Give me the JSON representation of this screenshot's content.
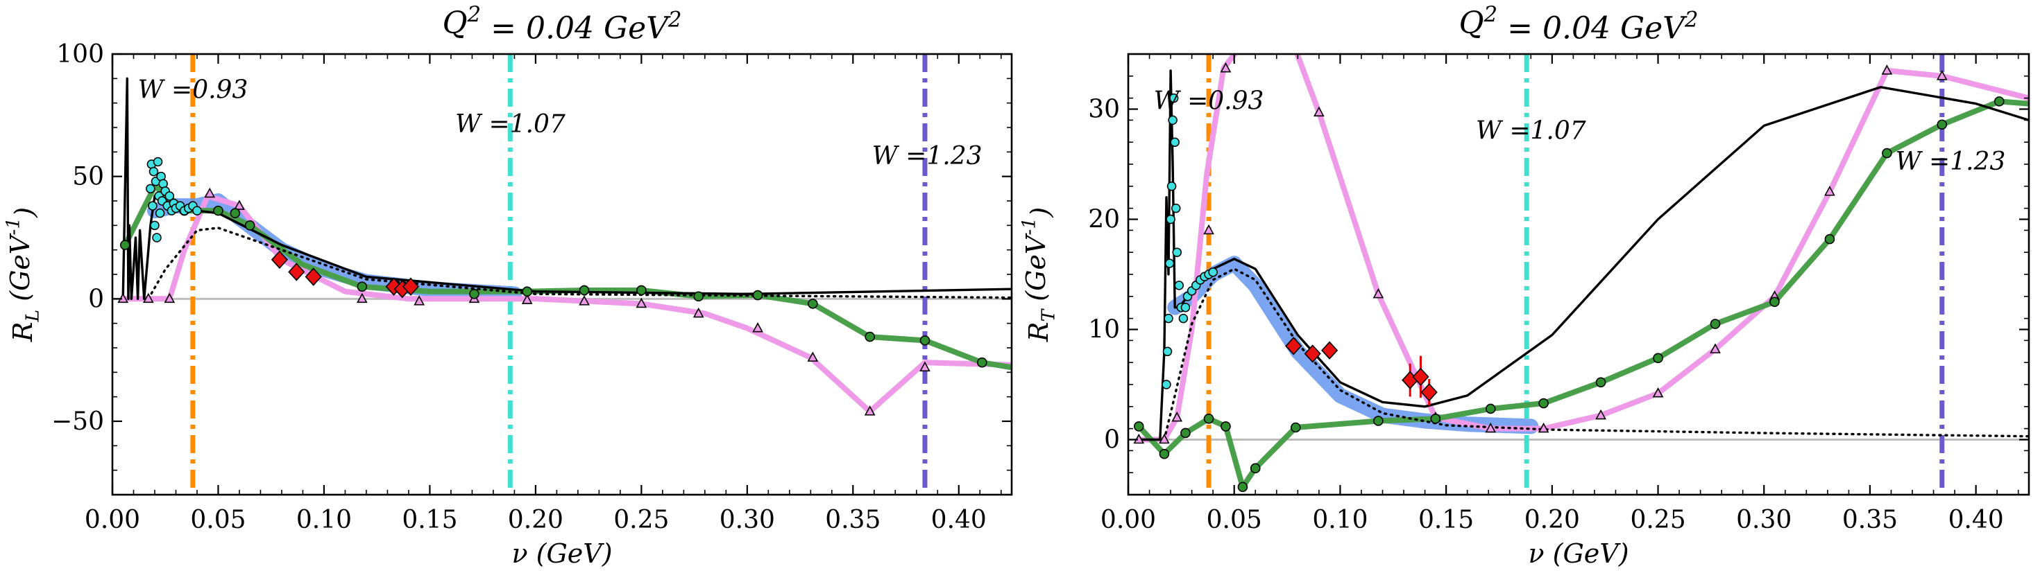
{
  "chart_data": [
    {
      "type": "line",
      "title": "Q^2 = 0.04 GeV^2",
      "xlabel": "ν (GeV)",
      "ylabel": "R_L (GeV^-1)",
      "xlim": [
        0.0,
        0.425
      ],
      "ylim": [
        -80,
        100
      ],
      "xticks": [
        0.0,
        0.05,
        0.1,
        0.15,
        0.2,
        0.25,
        0.3,
        0.35,
        0.4
      ],
      "xtick_labels": [
        "0.00",
        "0.05",
        "0.10",
        "0.15",
        "0.20",
        "0.25",
        "0.30",
        "0.35",
        "0.40"
      ],
      "yticks": [
        -50,
        0,
        50,
        100
      ],
      "ytick_labels": [
        "−50",
        "0",
        "50",
        "100"
      ],
      "grid": false,
      "zero_line": 0,
      "vlines": [
        {
          "x": 0.038,
          "color": "#ff8c00",
          "label": "W =0.93",
          "label_x": 0.012,
          "label_y": 82
        },
        {
          "x": 0.188,
          "color": "#40e0d0",
          "label": "W =1.07",
          "label_x": 0.162,
          "label_y": 68
        },
        {
          "x": 0.384,
          "color": "#6a5acd",
          "label": "W =1.23",
          "label_x": 0.359,
          "label_y": 55
        }
      ],
      "series": [
        {
          "style": "band",
          "color": "#6495ed",
          "x": [
            0.02,
            0.03,
            0.04,
            0.05,
            0.06,
            0.08,
            0.1,
            0.12,
            0.15,
            0.19
          ],
          "y": [
            36,
            38,
            38,
            40,
            33,
            20,
            12,
            7,
            4,
            2
          ]
        },
        {
          "style": "pink",
          "color": "#ee9ae8",
          "x": [
            0.005,
            0.017,
            0.027,
            0.034,
            0.045,
            0.06,
            0.08,
            0.11,
            0.14,
            0.17,
            0.2,
            0.25,
            0.28,
            0.3,
            0.33,
            0.358,
            0.384,
            0.425
          ],
          "y": [
            0,
            0,
            0,
            20,
            42,
            38,
            16,
            3,
            0,
            0,
            0,
            -2,
            -6,
            -12,
            -24,
            -46,
            -26,
            -27
          ]
        },
        {
          "style": "green",
          "color": "#4aa04a",
          "x": [
            0.006,
            0.02,
            0.035,
            0.05,
            0.065,
            0.09,
            0.118,
            0.15,
            0.195,
            0.223,
            0.25,
            0.277,
            0.305,
            0.331,
            0.358,
            0.384,
            0.411,
            0.425
          ],
          "y": [
            22,
            46,
            36,
            36,
            30,
            14,
            5,
            3,
            3,
            3.5,
            3.5,
            1,
            1.5,
            -2,
            -15.5,
            -17,
            -26,
            -28
          ]
        },
        {
          "style": "black",
          "color": "#000000",
          "x": [
            0.005,
            0.007,
            0.0075,
            0.008,
            0.009,
            0.011,
            0.012,
            0.013,
            0.015,
            0.016,
            0.018,
            0.02,
            0.03,
            0.04,
            0.05,
            0.08,
            0.12,
            0.2,
            0.3,
            0.425
          ],
          "y": [
            0,
            90,
            0,
            30,
            0,
            25,
            0,
            28,
            0,
            10,
            30,
            42,
            38,
            36,
            35,
            22,
            9,
            3,
            2,
            4
          ]
        },
        {
          "style": "dotted",
          "color": "#000000",
          "x": [
            0.017,
            0.025,
            0.04,
            0.05,
            0.08,
            0.12,
            0.2,
            0.425
          ],
          "y": [
            0,
            12,
            28,
            29,
            20,
            8,
            2,
            0.5
          ]
        }
      ],
      "green_points": {
        "x": [
          0.006,
          0.034,
          0.05,
          0.058,
          0.065,
          0.118,
          0.171,
          0.196,
          0.223,
          0.25,
          0.277,
          0.305,
          0.331,
          0.358,
          0.384,
          0.411
        ],
        "y": [
          22,
          36,
          36,
          35,
          30,
          5,
          2,
          3,
          3.5,
          3.5,
          1,
          1.5,
          -2,
          -15.5,
          -17,
          -26
        ]
      },
      "pink_points": {
        "x": [
          0.005,
          0.017,
          0.027,
          0.046,
          0.06,
          0.118,
          0.145,
          0.171,
          0.196,
          0.223,
          0.25,
          0.277,
          0.305,
          0.331,
          0.358,
          0.384
        ],
        "y": [
          0,
          0,
          0,
          43,
          38,
          0,
          -1,
          0,
          -0.5,
          -1,
          -2,
          -6,
          -12,
          -24,
          -46,
          -28
        ]
      },
      "cyan_points": {
        "x": [
          0.018,
          0.0185,
          0.019,
          0.0195,
          0.02,
          0.0205,
          0.021,
          0.0215,
          0.022,
          0.0225,
          0.023,
          0.0235,
          0.024,
          0.025,
          0.026,
          0.027,
          0.028,
          0.029,
          0.03,
          0.032,
          0.034,
          0.036,
          0.038,
          0.04
        ],
        "y": [
          45,
          55,
          38,
          52,
          30,
          48,
          25,
          56,
          42,
          35,
          50,
          40,
          47,
          44,
          38,
          42,
          36,
          39,
          37,
          38,
          36,
          37,
          38,
          36
        ]
      },
      "red_points": {
        "x": [
          0.079,
          0.087,
          0.095,
          0.133,
          0.137,
          0.141
        ],
        "y": [
          16,
          11,
          9,
          5,
          4,
          5
        ]
      }
    },
    {
      "type": "line",
      "title": "Q^2 = 0.04 GeV^2",
      "xlabel": "ν (GeV)",
      "ylabel": "R_T (GeV^-1)",
      "xlim": [
        0.0,
        0.425
      ],
      "ylim": [
        -5,
        35
      ],
      "xticks": [
        0.0,
        0.05,
        0.1,
        0.15,
        0.2,
        0.25,
        0.3,
        0.35,
        0.4
      ],
      "xtick_labels": [
        "0.00",
        "0.05",
        "0.10",
        "0.15",
        "0.20",
        "0.25",
        "0.30",
        "0.35",
        "0.40"
      ],
      "yticks": [
        0,
        10,
        20,
        30
      ],
      "ytick_labels": [
        "0",
        "10",
        "20",
        "30"
      ],
      "grid": false,
      "zero_line": 0,
      "vlines": [
        {
          "x": 0.038,
          "color": "#ff8c00",
          "label": "W =0.93",
          "label_x": 0.012,
          "label_y": 30
        },
        {
          "x": 0.188,
          "color": "#40e0d0",
          "label": "W =1.07",
          "label_x": 0.164,
          "label_y": 27.3
        },
        {
          "x": 0.384,
          "color": "#6a5acd",
          "label": "W =1.23",
          "label_x": 0.362,
          "label_y": 24.5
        }
      ],
      "series": [
        {
          "style": "band",
          "color": "#6495ed",
          "x": [
            0.022,
            0.03,
            0.04,
            0.05,
            0.06,
            0.08,
            0.1,
            0.12,
            0.14,
            0.16,
            0.19
          ],
          "y": [
            12,
            13,
            15,
            16,
            14,
            8,
            4,
            2.2,
            1.7,
            1.4,
            1.2
          ]
        },
        {
          "style": "pink",
          "color": "#ee9ae8",
          "x": [
            0.005,
            0.017,
            0.023,
            0.03,
            0.037,
            0.045,
            0.07,
            0.09,
            0.118,
            0.145,
            0.171,
            0.196,
            0.223,
            0.25,
            0.277,
            0.305,
            0.331,
            0.358,
            0.384,
            0.425
          ],
          "y": [
            0,
            0,
            2,
            10,
            24,
            33.7,
            40,
            29.7,
            13.2,
            2,
            1,
            1,
            2.2,
            4.2,
            8.2,
            13,
            22.5,
            33.5,
            33,
            31
          ]
        },
        {
          "style": "green",
          "color": "#4aa04a",
          "x": [
            0.005,
            0.017,
            0.027,
            0.038,
            0.046,
            0.054,
            0.06,
            0.079,
            0.118,
            0.145,
            0.171,
            0.196,
            0.223,
            0.25,
            0.277,
            0.305,
            0.331,
            0.358,
            0.384,
            0.411,
            0.425
          ],
          "y": [
            1.2,
            -1.3,
            0.6,
            1.9,
            1.2,
            -4.3,
            -2.6,
            1.1,
            1.7,
            1.9,
            2.8,
            3.3,
            5.2,
            7.4,
            10.5,
            12.5,
            18.2,
            26,
            28.6,
            30.7,
            30.5
          ]
        },
        {
          "style": "black",
          "color": "#000000",
          "x": [
            0.005,
            0.01,
            0.015,
            0.017,
            0.018,
            0.019,
            0.02,
            0.021,
            0.022,
            0.024,
            0.03,
            0.04,
            0.05,
            0.06,
            0.08,
            0.1,
            0.12,
            0.14,
            0.16,
            0.2,
            0.25,
            0.3,
            0.355,
            0.4,
            0.425
          ],
          "y": [
            0,
            0,
            0,
            8,
            22,
            15,
            33.5,
            25,
            12,
            12,
            13.5,
            15.5,
            16.4,
            15.5,
            9.5,
            5.2,
            3.4,
            3,
            4,
            9.5,
            20,
            28.5,
            32,
            30.5,
            29
          ]
        },
        {
          "style": "dotted",
          "color": "#000000",
          "x": [
            0.017,
            0.022,
            0.03,
            0.04,
            0.05,
            0.06,
            0.08,
            0.1,
            0.12,
            0.15,
            0.2,
            0.3,
            0.425
          ],
          "y": [
            0,
            4,
            10.5,
            14.5,
            15.5,
            14.5,
            8.7,
            4.5,
            2.4,
            1.3,
            0.9,
            0.6,
            0.3
          ]
        }
      ],
      "green_points": {
        "x": [
          0.005,
          0.017,
          0.027,
          0.038,
          0.046,
          0.054,
          0.06,
          0.079,
          0.118,
          0.145,
          0.171,
          0.196,
          0.223,
          0.25,
          0.277,
          0.305,
          0.331,
          0.358,
          0.384,
          0.411
        ],
        "y": [
          1.2,
          -1.3,
          0.6,
          1.9,
          1.2,
          -4.3,
          -2.6,
          1.1,
          1.7,
          1.9,
          2.8,
          3.3,
          5.2,
          7.4,
          10.5,
          12.5,
          18.2,
          26,
          28.6,
          30.7
        ]
      },
      "pink_points": {
        "x": [
          0.005,
          0.017,
          0.023,
          0.038,
          0.046,
          0.09,
          0.118,
          0.145,
          0.171,
          0.196,
          0.223,
          0.25,
          0.277,
          0.305,
          0.331,
          0.358,
          0.384
        ],
        "y": [
          0,
          0,
          2,
          19,
          33.7,
          29.7,
          13.2,
          2,
          1,
          1,
          2.2,
          4.2,
          8.2,
          13,
          22.5,
          33.5,
          33
        ]
      },
      "cyan_points": {
        "x": [
          0.018,
          0.0185,
          0.019,
          0.0195,
          0.02,
          0.0205,
          0.021,
          0.0215,
          0.022,
          0.0225,
          0.023,
          0.024,
          0.025,
          0.026,
          0.027,
          0.028,
          0.03,
          0.032,
          0.034,
          0.036,
          0.038,
          0.04
        ],
        "y": [
          5,
          8,
          11,
          16,
          20,
          23,
          29,
          31,
          27,
          21,
          17,
          14,
          12,
          11,
          12,
          13,
          13.5,
          14,
          14.5,
          14.8,
          15,
          15.2
        ]
      },
      "red_points": {
        "x": [
          0.078,
          0.087,
          0.095,
          0.133,
          0.138,
          0.142
        ],
        "y": [
          8.5,
          7.8,
          8.1,
          5.4,
          5.7,
          4.3
        ]
      },
      "red_errors": [
        0,
        0,
        0,
        1.5,
        1.9,
        1.2
      ]
    }
  ]
}
